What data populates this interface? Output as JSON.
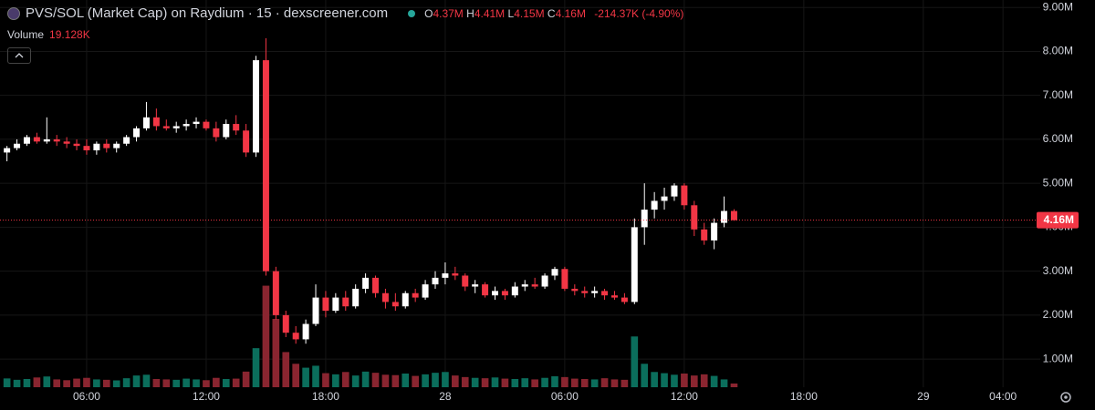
{
  "chart_data": {
    "type": "candlestick",
    "title": "PVS/SOL (Market Cap) on Raydium · 15 · dexscreener.com",
    "ohlc_legend": [
      {
        "key": "O",
        "value": "4.37M"
      },
      {
        "key": "H",
        "value": "4.41M"
      },
      {
        "key": "L",
        "value": "4.15M"
      },
      {
        "key": "C",
        "value": "4.16M"
      }
    ],
    "change": "-214.37K (-4.90%)",
    "volume_title": "Volume",
    "volume_label": "19.128K",
    "up_color": "#ffffff",
    "down_color": "#f23645",
    "volume_up_color": "#0b6e5c",
    "volume_down_color": "#8a2530",
    "grid": true,
    "x": [
      2.0,
      2.5,
      3.0,
      3.5,
      4.0,
      4.5,
      5.0,
      5.5,
      6.0,
      6.5,
      7.0,
      7.5,
      8.0,
      8.5,
      9.0,
      9.5,
      10.0,
      10.5,
      11.0,
      11.5,
      12.0,
      12.5,
      13.0,
      13.5,
      14.0,
      14.5,
      15.0,
      15.5,
      16.0,
      16.5,
      17.0,
      17.5,
      18.0,
      18.5,
      19.0,
      19.5,
      20.0,
      20.5,
      21.0,
      21.5,
      22.0,
      22.5,
      23.0,
      23.5,
      24.0,
      24.5,
      25.0,
      25.5,
      26.0,
      26.5,
      27.0,
      27.5,
      28.0,
      28.5,
      29.0,
      29.5,
      30.0,
      30.5,
      31.0,
      31.5,
      32.0,
      32.5,
      33.0,
      33.5,
      34.0,
      34.5,
      35.0,
      35.5,
      36.0,
      36.5,
      37.0,
      37.5,
      38.0,
      38.5
    ],
    "open": [
      5.7,
      5.8,
      5.9,
      6.05,
      5.95,
      6.0,
      5.95,
      5.9,
      5.85,
      5.75,
      5.9,
      5.8,
      5.9,
      6.05,
      6.25,
      6.5,
      6.3,
      6.25,
      6.3,
      6.35,
      6.4,
      6.25,
      6.05,
      6.35,
      6.2,
      5.7,
      7.8,
      3.0,
      2.0,
      1.6,
      1.45,
      1.8,
      2.4,
      2.1,
      2.4,
      2.2,
      2.6,
      2.85,
      2.5,
      2.3,
      2.2,
      2.5,
      2.4,
      2.7,
      2.85,
      2.95,
      2.9,
      2.65,
      2.7,
      2.45,
      2.55,
      2.45,
      2.65,
      2.7,
      2.65,
      2.9,
      3.05,
      2.6,
      2.55,
      2.5,
      2.55,
      2.45,
      2.4,
      2.3,
      4.0,
      4.4,
      4.6,
      4.7,
      4.95,
      4.5,
      3.95,
      3.7,
      4.1,
      4.37
    ],
    "high": [
      5.85,
      6.0,
      6.1,
      6.15,
      6.5,
      6.1,
      6.05,
      6.0,
      6.0,
      5.95,
      6.0,
      5.95,
      6.1,
      6.3,
      6.85,
      6.7,
      6.45,
      6.4,
      6.45,
      6.5,
      6.45,
      6.4,
      6.45,
      6.55,
      6.35,
      7.9,
      8.3,
      3.1,
      2.1,
      1.75,
      1.9,
      2.7,
      2.55,
      2.5,
      2.55,
      2.7,
      2.95,
      2.9,
      2.6,
      2.5,
      2.55,
      2.6,
      2.8,
      3.0,
      3.2,
      3.1,
      2.95,
      2.8,
      2.75,
      2.65,
      2.6,
      2.75,
      2.8,
      2.85,
      2.95,
      3.1,
      3.1,
      2.7,
      2.65,
      2.65,
      2.6,
      2.55,
      2.5,
      4.2,
      5.0,
      4.8,
      4.9,
      5.0,
      5.0,
      4.6,
      4.1,
      4.2,
      4.7,
      4.41
    ],
    "low": [
      5.5,
      5.75,
      5.85,
      5.9,
      5.9,
      5.85,
      5.8,
      5.75,
      5.65,
      5.65,
      5.7,
      5.7,
      5.85,
      5.95,
      6.2,
      6.2,
      6.2,
      6.15,
      6.2,
      6.25,
      6.2,
      5.95,
      6.0,
      6.1,
      5.6,
      5.6,
      2.9,
      1.9,
      1.5,
      1.35,
      1.35,
      1.75,
      1.95,
      2.05,
      2.1,
      2.15,
      2.5,
      2.4,
      2.15,
      2.1,
      2.15,
      2.3,
      2.35,
      2.6,
      2.7,
      2.8,
      2.55,
      2.5,
      2.4,
      2.35,
      2.35,
      2.4,
      2.55,
      2.6,
      2.6,
      2.8,
      2.55,
      2.45,
      2.4,
      2.4,
      2.35,
      2.35,
      2.25,
      2.25,
      3.6,
      4.2,
      4.4,
      4.6,
      4.4,
      3.8,
      3.6,
      3.5,
      4.0,
      4.15
    ],
    "close": [
      5.8,
      5.9,
      6.05,
      5.95,
      6.0,
      5.95,
      5.9,
      5.85,
      5.75,
      5.9,
      5.8,
      5.9,
      6.05,
      6.25,
      6.5,
      6.3,
      6.25,
      6.3,
      6.35,
      6.4,
      6.25,
      6.05,
      6.35,
      6.2,
      5.7,
      7.8,
      3.0,
      2.0,
      1.6,
      1.45,
      1.8,
      2.4,
      2.1,
      2.4,
      2.2,
      2.6,
      2.85,
      2.5,
      2.3,
      2.2,
      2.5,
      2.4,
      2.7,
      2.85,
      2.95,
      2.9,
      2.65,
      2.7,
      2.45,
      2.55,
      2.45,
      2.65,
      2.7,
      2.65,
      2.9,
      3.05,
      2.6,
      2.55,
      2.5,
      2.55,
      2.45,
      2.4,
      2.3,
      4.0,
      4.4,
      4.6,
      4.7,
      4.95,
      4.5,
      3.95,
      3.7,
      4.1,
      4.37,
      4.16
    ],
    "volume": [
      45,
      38,
      42,
      50,
      55,
      40,
      36,
      44,
      48,
      40,
      38,
      35,
      46,
      60,
      64,
      42,
      40,
      38,
      44,
      40,
      36,
      48,
      42,
      44,
      80,
      200,
      520,
      350,
      180,
      120,
      100,
      110,
      72,
      66,
      78,
      60,
      80,
      74,
      64,
      62,
      70,
      58,
      66,
      74,
      78,
      60,
      52,
      48,
      46,
      50,
      44,
      42,
      46,
      40,
      48,
      56,
      52,
      44,
      42,
      40,
      46,
      40,
      38,
      260,
      120,
      78,
      72,
      64,
      70,
      60,
      66,
      58,
      40,
      19.128
    ],
    "vlim": [
      0,
      560
    ],
    "xlim": [
      1.65,
      53.87
    ],
    "xticks": [
      {
        "value": 6,
        "label": "06:00"
      },
      {
        "value": 12,
        "label": "12:00"
      },
      {
        "value": 18,
        "label": "18:00"
      },
      {
        "value": 24,
        "label": "28"
      },
      {
        "value": 30,
        "label": "06:00"
      },
      {
        "value": 36,
        "label": "12:00"
      },
      {
        "value": 42,
        "label": "18:00"
      },
      {
        "value": 48,
        "label": "29"
      },
      {
        "value": 52,
        "label": "04:00"
      }
    ],
    "ylim": [
      0.36,
      9.17
    ],
    "yticks": [
      {
        "value": 1,
        "label": "1.00M"
      },
      {
        "value": 2,
        "label": "2.00M"
      },
      {
        "value": 3,
        "label": "3.00M"
      },
      {
        "value": 4,
        "label": "4.00M"
      },
      {
        "value": 5,
        "label": "5.00M"
      },
      {
        "value": 6,
        "label": "6.00M"
      },
      {
        "value": 7,
        "label": "7.00M"
      },
      {
        "value": 8,
        "label": "8.00M"
      },
      {
        "value": 9,
        "label": "9.00M"
      }
    ],
    "last_price": {
      "value": 4.16,
      "label": "4.16M"
    }
  }
}
